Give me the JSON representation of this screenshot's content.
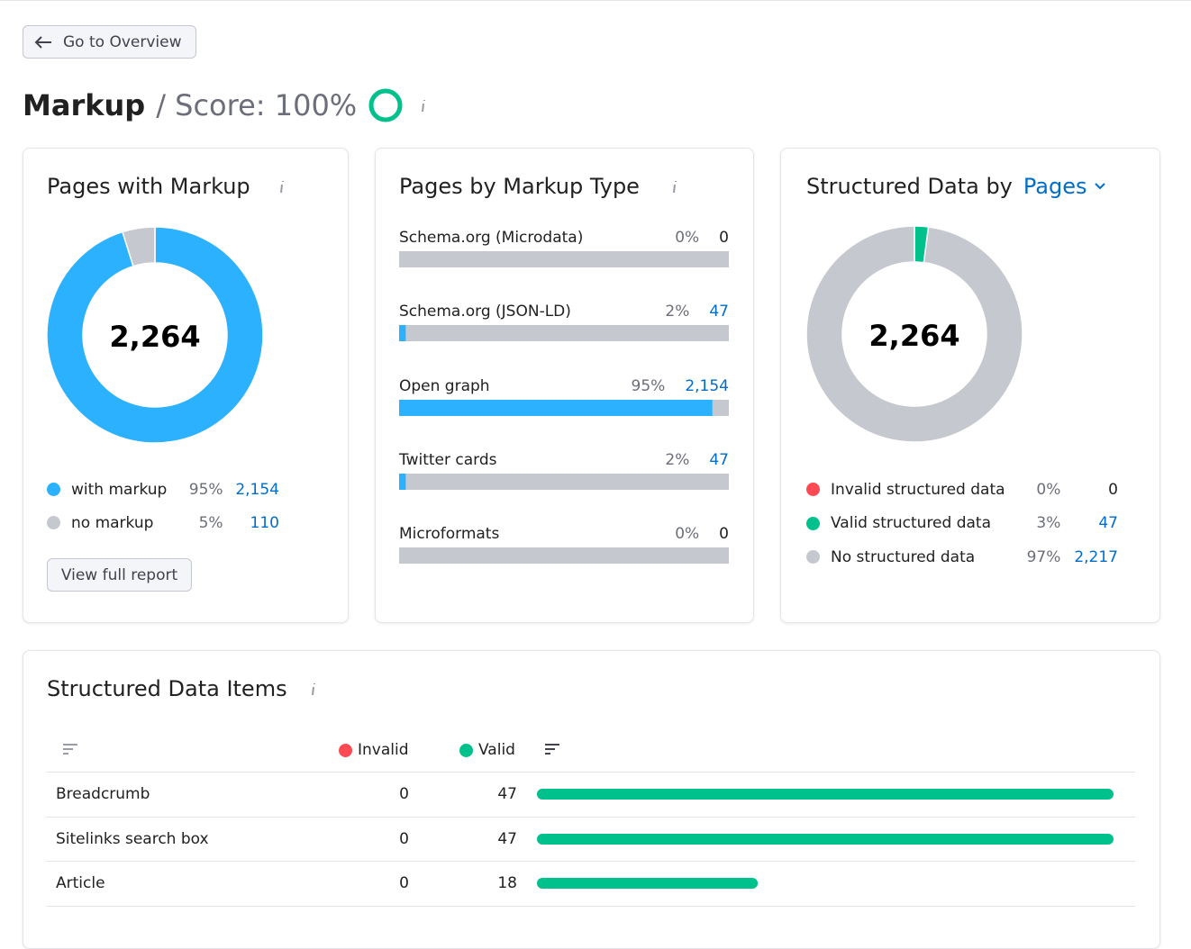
{
  "nav": {
    "back_button": "Go to Overview"
  },
  "header": {
    "title": "Markup",
    "score_label": "/ Score: 100%",
    "score": 100
  },
  "pages_with_markup": {
    "title": "Pages with Markup",
    "total_label": "2,264",
    "legend": [
      {
        "label": "with markup",
        "percent_label": "95%",
        "count": 2154,
        "count_label": "2,154",
        "color": "#2cb1ff"
      },
      {
        "label": "no markup",
        "percent_label": "5%",
        "count": 110,
        "count_label": "110",
        "color": "#c5c8ce"
      }
    ],
    "button": "View full report"
  },
  "markup_types": {
    "title": "Pages by Markup Type",
    "color": "#2cb1ff",
    "track_color": "#c5c8ce",
    "rows": [
      {
        "label": "Schema.org (Microdata)",
        "percent": 0,
        "percent_label": "0%",
        "count": 0,
        "count_label": "0"
      },
      {
        "label": "Schema.org (JSON-LD)",
        "percent": 2,
        "percent_label": "2%",
        "count": 47,
        "count_label": "47"
      },
      {
        "label": "Open graph",
        "percent": 95,
        "percent_label": "95%",
        "count": 2154,
        "count_label": "2,154"
      },
      {
        "label": "Twitter cards",
        "percent": 2,
        "percent_label": "2%",
        "count": 47,
        "count_label": "47"
      },
      {
        "label": "Microformats",
        "percent": 0,
        "percent_label": "0%",
        "count": 0,
        "count_label": "0"
      }
    ]
  },
  "structured_data": {
    "title": "Structured Data by",
    "dropdown": "Pages",
    "total_label": "2,264",
    "legend": [
      {
        "label": "Invalid structured data",
        "percent_label": "0%",
        "count": 0,
        "count_label": "0",
        "color": "#ff4953"
      },
      {
        "label": "Valid structured data",
        "percent_label": "3%",
        "count": 47,
        "count_label": "47",
        "color": "#00c08b"
      },
      {
        "label": "No structured data",
        "percent_label": "97%",
        "count": 2217,
        "count_label": "2,217",
        "color": "#c5c8ce"
      }
    ]
  },
  "items": {
    "title": "Structured Data Items",
    "headers": {
      "invalid": "Invalid",
      "valid": "Valid"
    },
    "invalid_color": "#ff4953",
    "valid_color": "#00c08b",
    "rows": [
      {
        "name": "Breadcrumb",
        "invalid": 0,
        "valid": 47
      },
      {
        "name": "Sitelinks search box",
        "invalid": 0,
        "valid": 47
      },
      {
        "name": "Article",
        "invalid": 0,
        "valid": 18
      }
    ]
  }
}
